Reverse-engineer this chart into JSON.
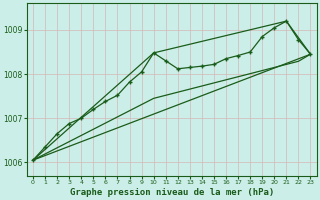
{
  "title": "Graphe pression niveau de la mer (hPa)",
  "bg_color": "#cceee8",
  "grid_color": "#d4b8b8",
  "line_color": "#1a5c1a",
  "xlim": [
    -0.5,
    23.5
  ],
  "ylim": [
    1005.7,
    1009.6
  ],
  "yticks": [
    1006,
    1007,
    1008,
    1009
  ],
  "xticks": [
    0,
    1,
    2,
    3,
    4,
    5,
    6,
    7,
    8,
    9,
    10,
    11,
    12,
    13,
    14,
    15,
    16,
    17,
    18,
    19,
    20,
    21,
    22,
    23
  ],
  "hours": [
    0,
    1,
    2,
    3,
    4,
    5,
    6,
    7,
    8,
    9,
    10,
    11,
    12,
    13,
    14,
    15,
    16,
    17,
    18,
    19,
    20,
    21,
    22,
    23
  ],
  "series_main": [
    1006.05,
    1006.35,
    1006.65,
    1006.88,
    1007.0,
    1007.2,
    1007.38,
    1007.52,
    1007.82,
    1008.05,
    1008.48,
    1008.3,
    1008.12,
    1008.15,
    1008.18,
    1008.22,
    1008.35,
    1008.42,
    1008.5,
    1008.85,
    1009.05,
    1009.2,
    1008.78,
    1008.45
  ],
  "series_straight": [
    1006.05,
    1006.19,
    1006.33,
    1006.47,
    1006.61,
    1006.75,
    1006.89,
    1007.03,
    1007.17,
    1007.31,
    1007.45,
    1007.52,
    1007.59,
    1007.66,
    1007.73,
    1007.8,
    1007.87,
    1007.94,
    1008.01,
    1008.08,
    1008.15,
    1008.22,
    1008.29,
    1008.45
  ],
  "triangle_x": [
    0,
    10,
    21,
    23,
    0
  ],
  "triangle_y": [
    1006.05,
    1008.48,
    1009.2,
    1008.45,
    1006.05
  ]
}
